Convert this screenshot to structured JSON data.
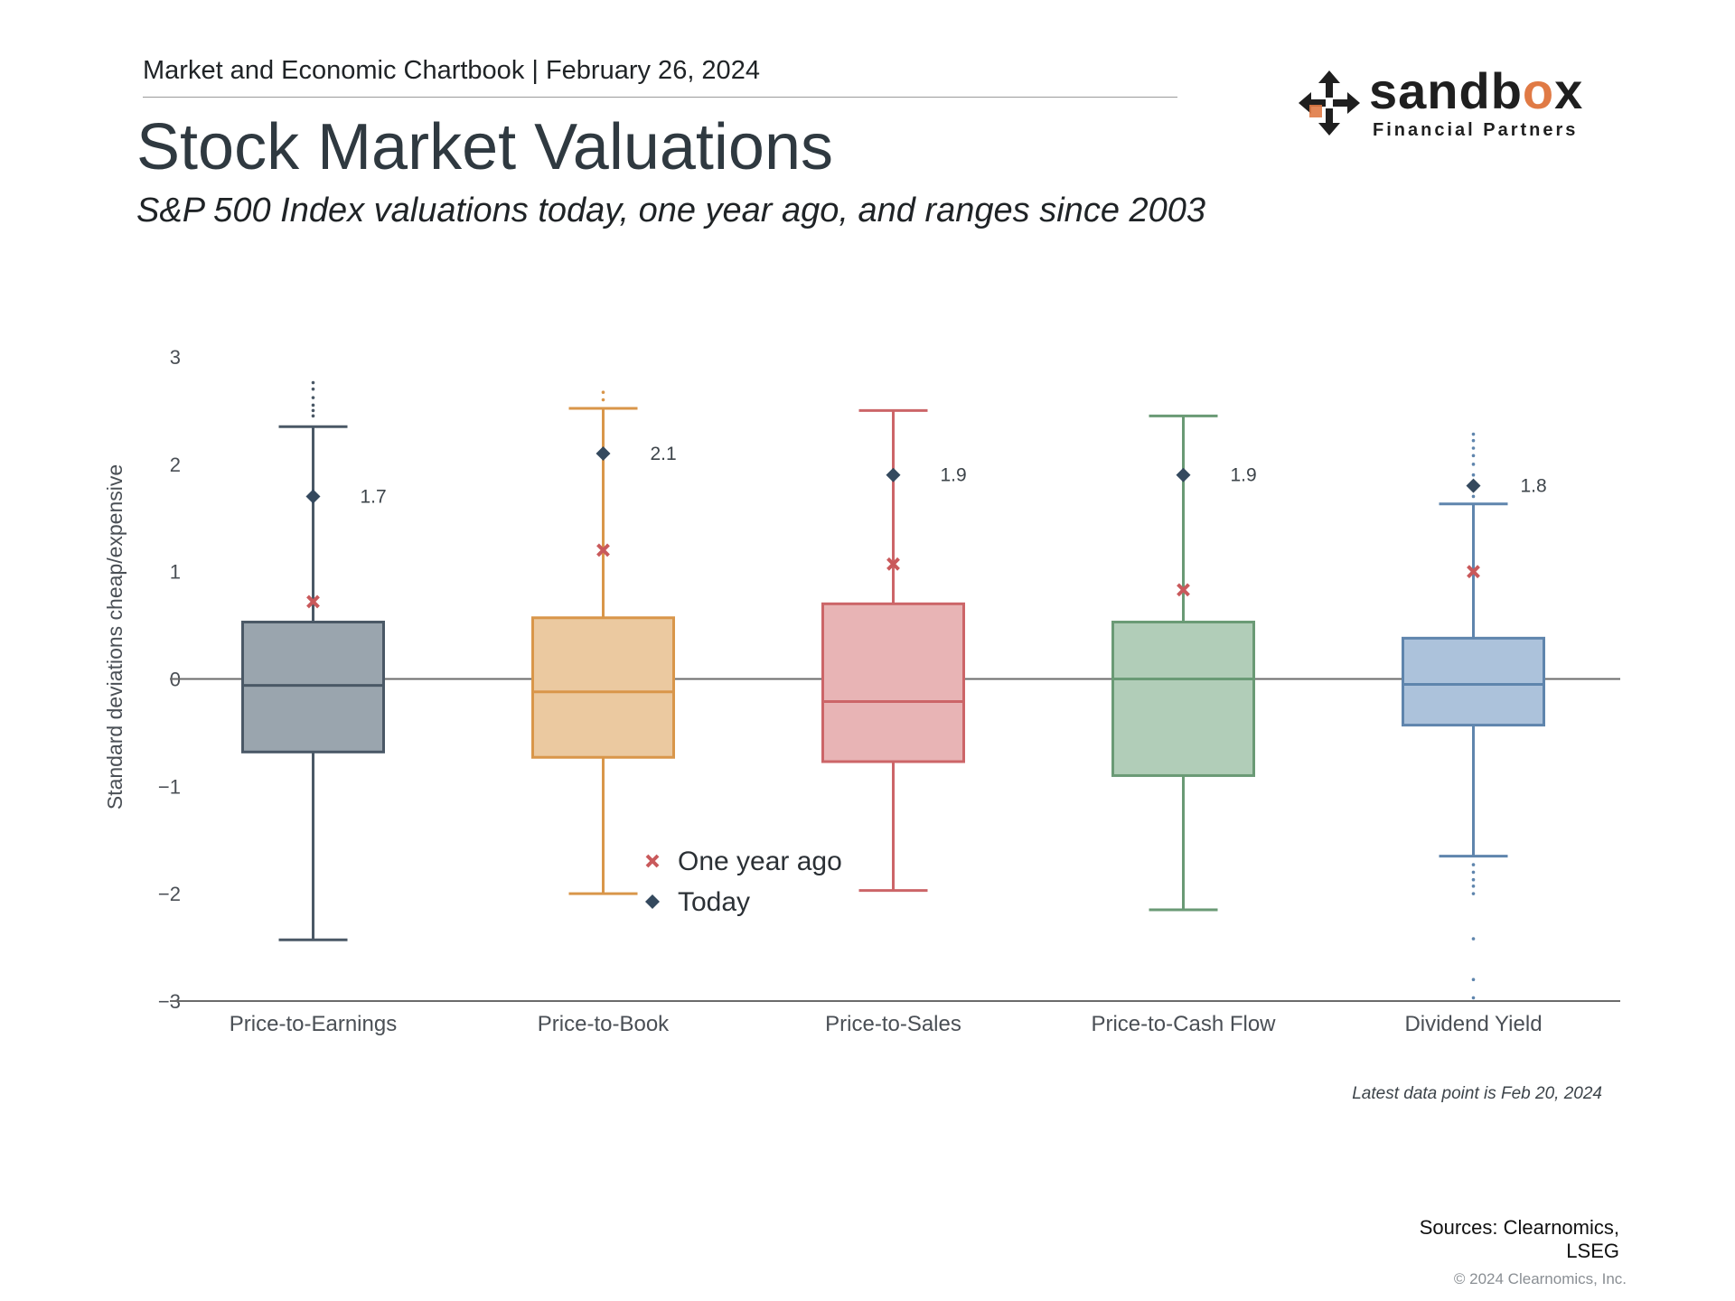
{
  "header": {
    "chartbook": "Market and Economic Chartbook | February 26, 2024",
    "title": "Stock Market Valuations",
    "subtitle": "S&P 500 Index valuations today, one year ago, and ranges since 2003"
  },
  "logo": {
    "word_prefix": "sandb",
    "word_accent": "o",
    "word_suffix": "x",
    "tagline": "Financial Partners",
    "accent_color": "#e07a45"
  },
  "chart_data": {
    "type": "box",
    "ylabel": "Standard deviations cheap/expensive",
    "ylim": [
      -3,
      3
    ],
    "yticks": [
      {
        "value": 3,
        "label": "3"
      },
      {
        "value": 2,
        "label": "2"
      },
      {
        "value": 1,
        "label": "1"
      },
      {
        "value": 0,
        "label": "0"
      },
      {
        "value": -1,
        "label": "−1"
      },
      {
        "value": -2,
        "label": "−2"
      },
      {
        "value": -3,
        "label": "−3"
      }
    ],
    "legend": {
      "position": "center-bottom",
      "one_year_ago": "One year ago",
      "today": "Today",
      "one_year_ago_color": "#c9595b",
      "today_color": "#34495e"
    },
    "categories": [
      {
        "name": "Price-to-Earnings",
        "color": "#4a5866",
        "fill": "#9aa5ae",
        "q1": -0.68,
        "median": -0.06,
        "q3": 0.53,
        "whisker_low": -2.43,
        "whisker_high": 2.35,
        "outliers": [
          2.45,
          2.5,
          2.55,
          2.62,
          2.7,
          2.76
        ],
        "today": 1.7,
        "today_label": "1.7",
        "one_year_ago": 0.72
      },
      {
        "name": "Price-to-Book",
        "color": "#d9964a",
        "fill": "#ebc9a0",
        "q1": -0.73,
        "median": -0.12,
        "q3": 0.57,
        "whisker_low": -2.0,
        "whisker_high": 2.52,
        "outliers": [
          2.6,
          2.67
        ],
        "today": 2.1,
        "today_label": "2.1",
        "one_year_ago": 1.2
      },
      {
        "name": "Price-to-Sales",
        "color": "#cc6568",
        "fill": "#e8b4b5",
        "q1": -0.77,
        "median": -0.21,
        "q3": 0.7,
        "whisker_low": -1.97,
        "whisker_high": 2.5,
        "outliers": [],
        "today": 1.9,
        "today_label": "1.9",
        "one_year_ago": 1.07
      },
      {
        "name": "Price-to-Cash Flow",
        "color": "#6a9a75",
        "fill": "#b1cdb8",
        "q1": -0.9,
        "median": 0.0,
        "q3": 0.53,
        "whisker_low": -2.15,
        "whisker_high": 2.45,
        "outliers": [],
        "today": 1.9,
        "today_label": "1.9",
        "one_year_ago": 0.83
      },
      {
        "name": "Dividend Yield",
        "color": "#5f85ad",
        "fill": "#acc2db",
        "q1": -0.43,
        "median": -0.05,
        "q3": 0.38,
        "whisker_low": -1.65,
        "whisker_high": 1.63,
        "outliers": [
          1.7,
          1.8,
          1.9,
          2.0,
          2.08,
          2.15,
          2.22,
          2.28,
          -1.73,
          -1.8,
          -1.87,
          -1.93,
          -2.0,
          -2.42,
          -2.8,
          -2.97
        ],
        "today": 1.8,
        "today_label": "1.8",
        "one_year_ago": 1.0
      }
    ]
  },
  "footer": {
    "latest_note": "Latest data point is Feb 20, 2024",
    "sources_line1": "Sources: Clearnomics,",
    "sources_line2": "LSEG",
    "copyright": "© 2024 Clearnomics, Inc."
  }
}
